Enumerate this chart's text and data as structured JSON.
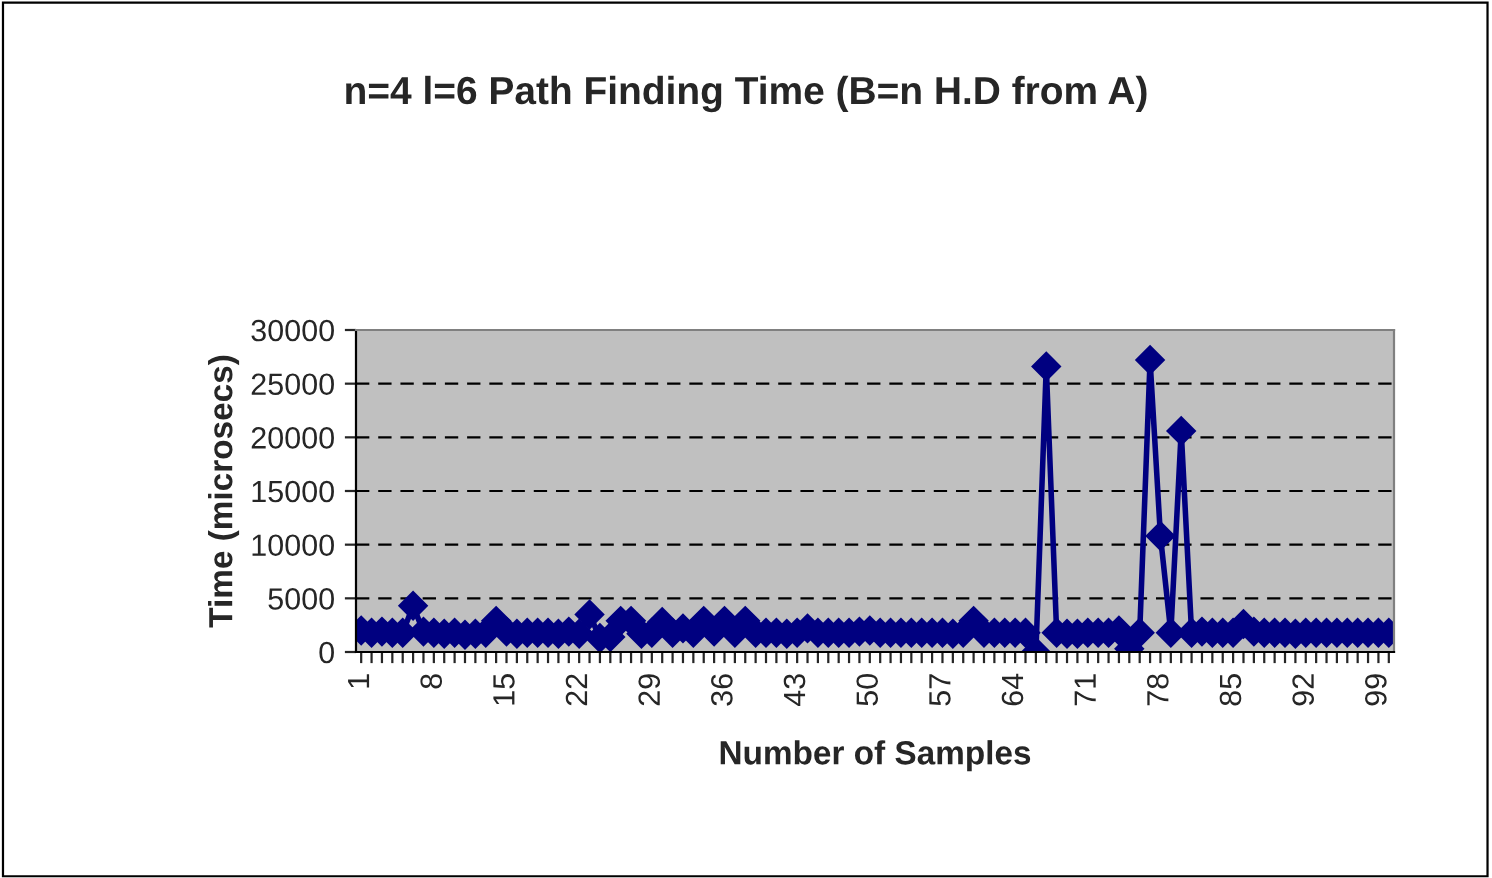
{
  "chart_data": {
    "type": "line",
    "title": "n=4 l=6 Path Finding Time (B=n H.D from A)",
    "xlabel": "Number of Samples",
    "ylabel": "Time (microsecs)",
    "categories": [
      "1",
      null,
      null,
      null,
      null,
      null,
      null,
      "8",
      null,
      null,
      null,
      null,
      null,
      null,
      "15",
      null,
      null,
      null,
      null,
      null,
      null,
      "22",
      null,
      null,
      null,
      null,
      null,
      null,
      "29",
      null,
      null,
      null,
      null,
      null,
      null,
      "36",
      null,
      null,
      null,
      null,
      null,
      null,
      "43",
      null,
      null,
      null,
      null,
      null,
      null,
      "50",
      null,
      null,
      null,
      null,
      null,
      null,
      "57",
      null,
      null,
      null,
      null,
      null,
      null,
      "64",
      null,
      null,
      null,
      null,
      null,
      null,
      "71",
      null,
      null,
      null,
      null,
      null,
      null,
      "78",
      null,
      null,
      null,
      null,
      null,
      null,
      "85",
      null,
      null,
      null,
      null,
      null,
      null,
      "92",
      null,
      null,
      null,
      null,
      null,
      null,
      "99",
      null
    ],
    "series": [
      {
        "color": "#000080",
        "values": [
          2000,
          1800,
          1900,
          1800,
          1800,
          4300,
          1900,
          1800,
          1700,
          1800,
          1600,
          1700,
          1800,
          2900,
          1900,
          1700,
          1800,
          1800,
          1800,
          1700,
          1900,
          1700,
          3500,
          1300,
          1400,
          2900,
          2900,
          1700,
          1800,
          2800,
          1800,
          2200,
          1800,
          2900,
          1900,
          2900,
          1800,
          2900,
          1800,
          1800,
          1800,
          1700,
          1800,
          2200,
          1800,
          1800,
          1800,
          1800,
          1900,
          2000,
          1800,
          1800,
          1800,
          1800,
          1800,
          1800,
          1800,
          1700,
          1800,
          2900,
          1800,
          1800,
          1800,
          1800,
          1800,
          0,
          26600,
          1800,
          1700,
          1700,
          1800,
          1800,
          1800,
          2000,
          300,
          1800,
          27200,
          10800,
          1800,
          20600,
          1800,
          1900,
          1800,
          1800,
          1800,
          2600,
          1900,
          1800,
          1800,
          1800,
          1700,
          1800,
          1800,
          1800,
          1800,
          1800,
          1800,
          1800,
          1800,
          1800
        ]
      }
    ],
    "ylim": [
      0,
      30000
    ],
    "yticks": [
      0,
      5000,
      10000,
      15000,
      20000,
      25000,
      30000
    ],
    "grid": "y",
    "marker": "diamond",
    "line_style": "solid",
    "legend": false
  }
}
